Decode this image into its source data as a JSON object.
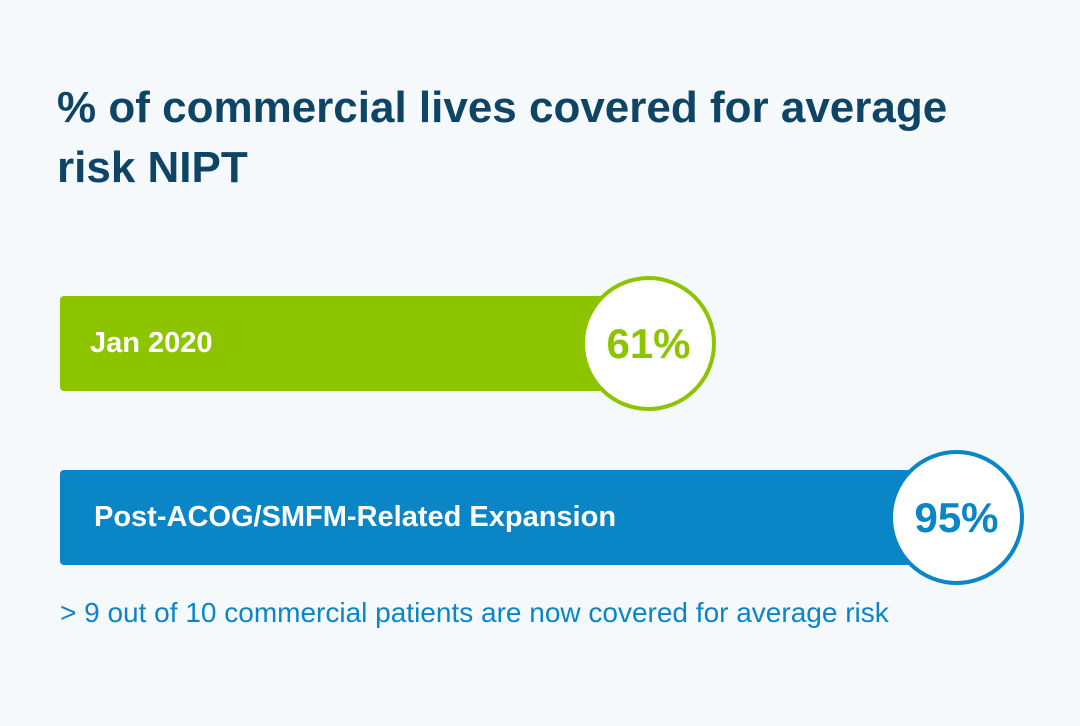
{
  "chart_data": {
    "type": "bar",
    "orientation": "horizontal",
    "title": "% of commercial lives covered for average risk NIPT",
    "categories": [
      "Jan 2020",
      "Post-ACOG/SMFM-Related Expansion"
    ],
    "values": [
      61,
      95
    ],
    "value_labels": [
      "61%",
      "95%"
    ],
    "xlim": [
      0,
      100
    ],
    "unit": "%",
    "colors": [
      "#8dc400",
      "#0a85c6"
    ],
    "grid": false,
    "legend": "none",
    "annotation": "> 9 out of 10 commercial patients are now covered for average risk"
  }
}
